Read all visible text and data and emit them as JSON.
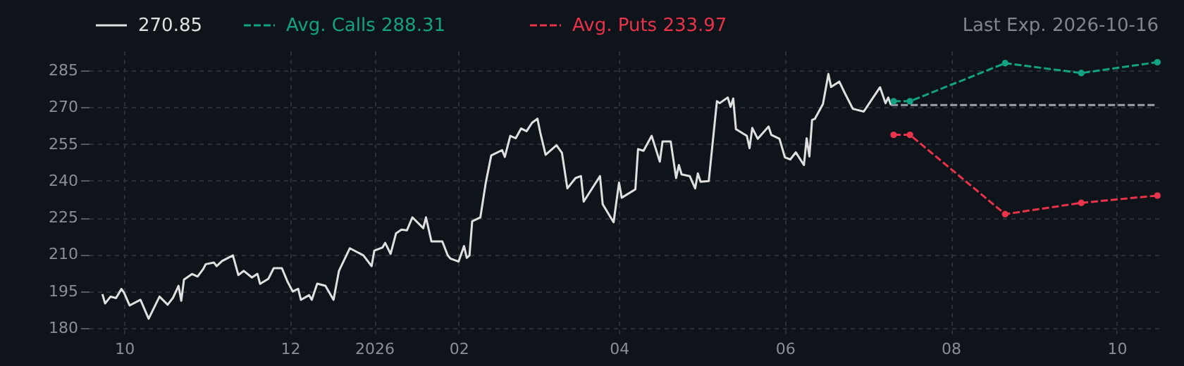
{
  "chart_data": {
    "type": "line",
    "annotations": [
      "Last Exp. 2026-10-16"
    ],
    "xlim": [
      "2025-09-18",
      "2026-10-18"
    ],
    "xticks": [
      {
        "value": "2025-10-01",
        "label": "10"
      },
      {
        "value": "2025-12-01",
        "label": "12"
      },
      {
        "value": "2026-01-01",
        "label": "2026"
      },
      {
        "value": "2026-02-01",
        "label": "02"
      },
      {
        "value": "2026-04-01",
        "label": "04"
      },
      {
        "value": "2026-06-01",
        "label": "06"
      },
      {
        "value": "2026-08-01",
        "label": "08"
      },
      {
        "value": "2026-10-01",
        "label": "10"
      }
    ],
    "ylim": [
      176,
      293
    ],
    "yticks": [
      180,
      195,
      210,
      225,
      240,
      255,
      270,
      285
    ],
    "grid": true,
    "legend": "top left",
    "series": [
      {
        "name": "270.85",
        "color": "#e0e0e0",
        "line_style": "solid",
        "marker": "none",
        "x": [
          "2025-09-23",
          "2025-09-24",
          "2025-09-26",
          "2025-09-28",
          "2025-09-30",
          "2025-10-01",
          "2025-10-03",
          "2025-10-07",
          "2025-10-10",
          "2025-10-14",
          "2025-10-17",
          "2025-10-19",
          "2025-10-21",
          "2025-10-22",
          "2025-10-23",
          "2025-10-26",
          "2025-10-28",
          "2025-10-30",
          "2025-10-31",
          "2025-11-03",
          "2025-11-04",
          "2025-11-06",
          "2025-11-10",
          "2025-11-12",
          "2025-11-14",
          "2025-11-17",
          "2025-11-19",
          "2025-11-20",
          "2025-11-23",
          "2025-11-25",
          "2025-11-28",
          "2025-11-30",
          "2025-12-02",
          "2025-12-04",
          "2025-12-05",
          "2025-12-08",
          "2025-12-09",
          "2025-12-11",
          "2025-12-14",
          "2025-12-17",
          "2025-12-19",
          "2025-12-23",
          "2025-12-28",
          "2025-12-31",
          "2026-01-01",
          "2026-01-04",
          "2026-01-05",
          "2026-01-07",
          "2026-01-09",
          "2026-01-11",
          "2026-01-13",
          "2026-01-15",
          "2026-01-19",
          "2026-01-20",
          "2026-01-22",
          "2026-01-26",
          "2026-01-28",
          "2026-01-29",
          "2026-02-01",
          "2026-02-03",
          "2026-02-04",
          "2026-02-05",
          "2026-02-06",
          "2026-02-09",
          "2026-02-11",
          "2026-02-13",
          "2026-02-17",
          "2026-02-18",
          "2026-02-20",
          "2026-02-22",
          "2026-02-24",
          "2026-02-26",
          "2026-02-28",
          "2026-03-02",
          "2026-03-03",
          "2026-03-05",
          "2026-03-09",
          "2026-03-11",
          "2026-03-13",
          "2026-03-16",
          "2026-03-18",
          "2026-03-19",
          "2026-03-25",
          "2026-03-26",
          "2026-03-30",
          "2026-04-01",
          "2026-04-02",
          "2026-04-07",
          "2026-04-08",
          "2026-04-10",
          "2026-04-13",
          "2026-04-16",
          "2026-04-17",
          "2026-04-20",
          "2026-04-22",
          "2026-04-23",
          "2026-04-24",
          "2026-04-27",
          "2026-04-29",
          "2026-04-30",
          "2026-05-01",
          "2026-05-04",
          "2026-05-07",
          "2026-05-08",
          "2026-05-11",
          "2026-05-12",
          "2026-05-13",
          "2026-05-14",
          "2026-05-18",
          "2026-05-19",
          "2026-05-20",
          "2026-05-22",
          "2026-05-26",
          "2026-05-27",
          "2026-05-30",
          "2026-06-01",
          "2026-06-03",
          "2026-06-05",
          "2026-06-08",
          "2026-06-09",
          "2026-06-10",
          "2026-06-11",
          "2026-06-12",
          "2026-06-15",
          "2026-06-17",
          "2026-06-18",
          "2026-06-21",
          "2026-06-23",
          "2026-06-26",
          "2026-06-30",
          "2026-07-03",
          "2026-07-06",
          "2026-07-08",
          "2026-07-09",
          "2026-07-10"
        ],
        "values": [
          193.8,
          190.0,
          192.8,
          192.2,
          195.9,
          194.3,
          189.2,
          191.5,
          183.8,
          192.8,
          189.5,
          192.4,
          197.2,
          191.1,
          199.7,
          202.0,
          201.0,
          203.9,
          206.0,
          206.7,
          205.2,
          207.3,
          209.6,
          201.6,
          203.3,
          200.6,
          202.1,
          198.0,
          200.0,
          204.4,
          204.4,
          199.1,
          194.9,
          196.0,
          191.5,
          193.4,
          191.5,
          198.1,
          197.2,
          191.5,
          203.3,
          212.5,
          209.6,
          205.2,
          211.5,
          212.8,
          214.7,
          210.2,
          218.6,
          220.1,
          219.8,
          225.1,
          220.7,
          225.1,
          215.3,
          215.3,
          209.6,
          208.3,
          207.1,
          213.4,
          208.6,
          209.6,
          223.5,
          225.1,
          239.2,
          250.3,
          252.5,
          249.7,
          258.3,
          257.3,
          261.3,
          260.2,
          263.6,
          265.3,
          259.8,
          250.6,
          254.5,
          251.4,
          236.9,
          241.1,
          241.9,
          231.5,
          241.9,
          230.4,
          223.1,
          239.2,
          233.1,
          236.5,
          252.9,
          252.2,
          258.3,
          247.8,
          256.0,
          256.0,
          241.1,
          246.4,
          242.6,
          241.9,
          236.9,
          243.0,
          239.6,
          239.9,
          272.4,
          271.6,
          273.9,
          270.1,
          273.5,
          261.0,
          258.3,
          253.3,
          261.5,
          257.1,
          262.1,
          258.7,
          257.1,
          249.5,
          248.7,
          251.6,
          246.4,
          257.3,
          249.9,
          264.8,
          265.2,
          271.3,
          283.5,
          278.2,
          280.4,
          275.8,
          269.3,
          268.2,
          273.2,
          278.1,
          271.6,
          273.9,
          270.85
        ]
      },
      {
        "color": "#9a9ea6",
        "line_style": "dashed",
        "marker": "none",
        "x": [
          "2026-07-10",
          "2026-10-16"
        ],
        "values": [
          270.85,
          270.85
        ]
      },
      {
        "name": "Avg. Calls  288.31",
        "color": "#13a383",
        "line_style": "dashed",
        "marker": "circle",
        "x": [
          "2026-07-11",
          "2026-07-17",
          "2026-08-21",
          "2026-09-18",
          "2026-10-16"
        ],
        "values": [
          272.4,
          272.4,
          287.9,
          283.9,
          288.31
        ]
      },
      {
        "name": "Avg. Puts  233.97",
        "color": "#e8334a",
        "line_style": "dashed",
        "marker": "circle",
        "x": [
          "2026-07-11",
          "2026-07-17",
          "2026-08-21",
          "2026-09-18",
          "2026-10-16"
        ],
        "values": [
          258.7,
          258.7,
          226.4,
          231.0,
          233.97
        ]
      }
    ]
  }
}
